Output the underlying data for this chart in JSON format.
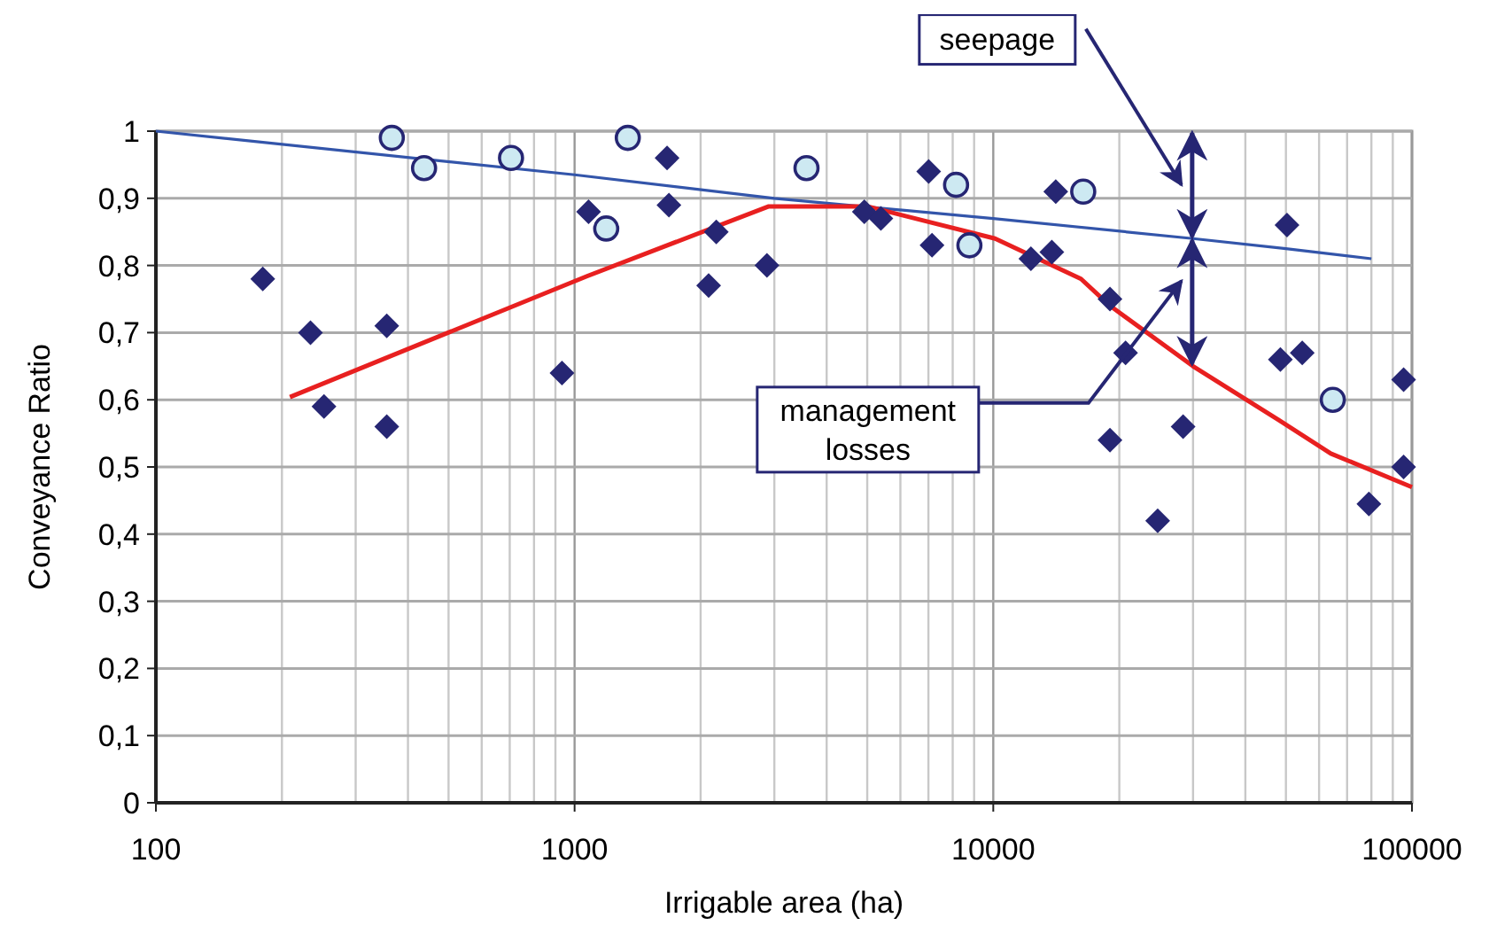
{
  "chart_data": {
    "type": "scatter",
    "xlabel": "Irrigable area (ha)",
    "ylabel": "Conveyance Ratio",
    "log": "x",
    "grid": true,
    "xlim": [
      100,
      100000
    ],
    "ylim": [
      0,
      1
    ],
    "xticks": [
      100,
      {
        "value": 200,
        "label": null
      },
      {
        "value": 300,
        "label": null
      },
      {
        "value": 400,
        "label": null
      },
      {
        "value": 500,
        "label": null
      },
      {
        "value": 600,
        "label": null
      },
      {
        "value": 700,
        "label": null
      },
      {
        "value": 800,
        "label": null
      },
      {
        "value": 900,
        "label": null
      },
      1000,
      {
        "value": 2000,
        "label": null
      },
      {
        "value": 3000,
        "label": null
      },
      {
        "value": 4000,
        "label": null
      },
      {
        "value": 5000,
        "label": null
      },
      {
        "value": 6000,
        "label": null
      },
      {
        "value": 7000,
        "label": null
      },
      {
        "value": 8000,
        "label": null
      },
      {
        "value": 9000,
        "label": null
      },
      10000,
      {
        "value": 20000,
        "label": null
      },
      {
        "value": 30000,
        "label": null
      },
      {
        "value": 40000,
        "label": null
      },
      {
        "value": 50000,
        "label": null
      },
      {
        "value": 60000,
        "label": null
      },
      {
        "value": 70000,
        "label": null
      },
      {
        "value": 80000,
        "label": null
      },
      {
        "value": 90000,
        "label": null
      },
      100000
    ],
    "yticks": [
      0,
      {
        "value": 0.1,
        "label": "0,1"
      },
      {
        "value": 0.2,
        "label": "0,2"
      },
      {
        "value": 0.3,
        "label": "0,3"
      },
      {
        "value": 0.4,
        "label": "0,4"
      },
      {
        "value": 0.5,
        "label": "0,5"
      },
      {
        "value": 0.6,
        "label": "0,6"
      },
      {
        "value": 0.7,
        "label": "0,7"
      },
      {
        "value": 0.8,
        "label": "0,8"
      },
      {
        "value": 0.9,
        "label": "0,9"
      },
      1
    ],
    "series": [
      {
        "type": "line",
        "color": "#3355aa",
        "x": [
          100,
          1000,
          3000,
          10000,
          30000,
          50000,
          80000
        ],
        "values": [
          1.0,
          0.935,
          0.9,
          0.87,
          0.84,
          0.825,
          0.81
        ]
      },
      {
        "type": "line",
        "color": "#e82020",
        "x": [
          209,
          1070,
          2910,
          5000,
          10100,
          16200,
          19000,
          30000,
          48000,
          64000,
          100000
        ],
        "values": [
          0.604,
          0.784,
          0.888,
          0.888,
          0.84,
          0.78,
          0.74,
          0.65,
          0.57,
          0.52,
          0.47
        ]
      },
      {
        "color": "#262673",
        "marker": "diamond",
        "x": [
          180,
          234,
          252,
          356,
          356,
          933,
          1080,
          1663,
          1680,
          2180,
          2090,
          2880,
          4920,
          5390,
          7010,
          7140,
          14100,
          12300,
          13800,
          19000,
          20700,
          19000,
          28400,
          24700,
          50300,
          48500,
          54700,
          95500,
          95500,
          78900
        ],
        "values": [
          0.78,
          0.7,
          0.59,
          0.71,
          0.56,
          0.64,
          0.88,
          0.96,
          0.89,
          0.85,
          0.77,
          0.8,
          0.88,
          0.87,
          0.94,
          0.83,
          0.91,
          0.81,
          0.82,
          0.75,
          0.67,
          0.54,
          0.56,
          0.42,
          0.86,
          0.66,
          0.67,
          0.63,
          0.5,
          0.445
        ]
      },
      {
        "color": "#cde9f2",
        "marker": "circle",
        "x": [
          366,
          437,
          705,
          1340,
          1190,
          3580,
          8150,
          8770,
          16400,
          64700
        ],
        "values": [
          0.99,
          0.945,
          0.96,
          0.99,
          0.855,
          0.945,
          0.92,
          0.83,
          0.91,
          0.6
        ]
      }
    ],
    "annotations": [
      "seepage",
      "management losses"
    ]
  }
}
